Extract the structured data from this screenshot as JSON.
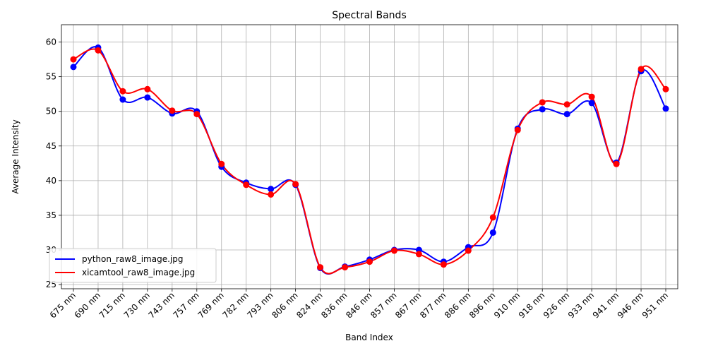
{
  "chart_data": {
    "type": "line",
    "title": "Spectral Bands",
    "xlabel": "Band Index",
    "ylabel": "Average Intensity",
    "categories": [
      "675 nm",
      "690 nm",
      "715 nm",
      "730 nm",
      "743 nm",
      "757 nm",
      "769 nm",
      "782 nm",
      "793 nm",
      "806 nm",
      "824 nm",
      "836 nm",
      "846 nm",
      "857 nm",
      "867 nm",
      "877 nm",
      "886 nm",
      "896 nm",
      "910 nm",
      "918 nm",
      "926 nm",
      "933 nm",
      "941 nm",
      "946 nm",
      "951 nm"
    ],
    "yticks": [
      25,
      30,
      35,
      40,
      45,
      50,
      55,
      60
    ],
    "ylim": [
      24.4,
      62.5
    ],
    "grid": true,
    "legend_position": "lower-left",
    "series": [
      {
        "name": "python_raw8_image.jpg",
        "color": "#0000ff",
        "values": [
          56.4,
          59.2,
          51.7,
          52.0,
          49.7,
          50.0,
          42.0,
          39.7,
          38.8,
          39.4,
          27.4,
          27.6,
          28.6,
          30.0,
          30.0,
          28.3,
          30.4,
          32.5,
          47.5,
          50.3,
          49.6,
          51.2,
          42.6,
          55.8,
          50.4
        ]
      },
      {
        "name": "xicamtool_raw8_image.jpg",
        "color": "#ff0000",
        "values": [
          57.5,
          58.8,
          52.9,
          53.2,
          50.1,
          49.6,
          42.4,
          39.4,
          38.0,
          39.5,
          27.5,
          27.5,
          28.3,
          29.9,
          29.4,
          27.9,
          29.9,
          34.7,
          47.3,
          51.3,
          51.0,
          52.1,
          42.4,
          56.1,
          53.2
        ]
      }
    ]
  }
}
